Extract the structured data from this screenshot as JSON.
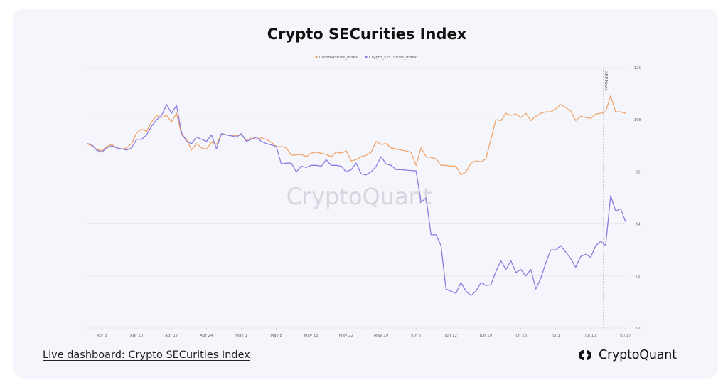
{
  "title": "Crypto SECurities Index",
  "footer": {
    "link_text": "Live dashboard: Crypto SECurities Index"
  },
  "brand": {
    "name": "CryptoQuant",
    "watermark": "CryptoQuant"
  },
  "colors": {
    "commodities": "#f0a56c",
    "crypto": "#8b7ce0",
    "grid": "#e3e4ea"
  },
  "chart_data": {
    "type": "line",
    "title": "Crypto SECurities Index",
    "xlabel": "",
    "ylabel": "",
    "ylim": [
      60,
      120
    ],
    "yticks": [
      60,
      72,
      84,
      96,
      108,
      120
    ],
    "xtick_labels": [
      "Apr 3",
      "Apr 10",
      "Apr 17",
      "Apr 24",
      "May 1",
      "May 8",
      "May 15",
      "May 22",
      "May 29",
      "Jun 5",
      "Jun 12",
      "Jun 19",
      "Jun 26",
      "Jul 3",
      "Jul 10",
      "Jul 17"
    ],
    "x_start": "Mar 31",
    "x_end": "Jul 17",
    "legend_position": "top-center",
    "grid": true,
    "annotation": {
      "label": "XRP News",
      "date": "Jul 13"
    },
    "series": [
      {
        "name": "Commodities_Index",
        "color": "#f0a56c",
        "points": [
          [
            "Mar 31",
            102.5
          ],
          [
            "Apr 1",
            102.0
          ],
          [
            "Apr 2",
            101.2
          ],
          [
            "Apr 3",
            100.8
          ],
          [
            "Apr 4",
            101.8
          ],
          [
            "Apr 5",
            102.3
          ],
          [
            "Apr 6",
            101.5
          ],
          [
            "Apr 7",
            101.2
          ],
          [
            "Apr 8",
            101.5
          ],
          [
            "Apr 9",
            102.5
          ],
          [
            "Apr 10",
            105.0
          ],
          [
            "Apr 11",
            105.8
          ],
          [
            "Apr 12",
            105.3
          ],
          [
            "Apr 13",
            107.5
          ],
          [
            "Apr 14",
            109.0
          ],
          [
            "Apr 15",
            108.5
          ],
          [
            "Apr 16",
            109.0
          ],
          [
            "Apr 17",
            107.5
          ],
          [
            "Apr 18",
            109.5
          ],
          [
            "Apr 19",
            104.5
          ],
          [
            "Apr 20",
            103.5
          ],
          [
            "Apr 21",
            101.0
          ],
          [
            "Apr 22",
            102.5
          ],
          [
            "Apr 23",
            101.5
          ],
          [
            "Apr 24",
            101.2
          ],
          [
            "Apr 25",
            102.8
          ],
          [
            "Apr 26",
            102.3
          ],
          [
            "Apr 27",
            104.8
          ],
          [
            "Apr 28",
            104.5
          ],
          [
            "Apr 29",
            104.5
          ],
          [
            "Apr 30",
            104.3
          ],
          [
            "May 1",
            104.5
          ],
          [
            "May 2",
            103.3
          ],
          [
            "May 3",
            103.8
          ],
          [
            "May 4",
            103.5
          ],
          [
            "May 5",
            103.8
          ],
          [
            "May 6",
            103.5
          ],
          [
            "May 7",
            102.8
          ],
          [
            "May 8",
            101.8
          ],
          [
            "May 9",
            101.8
          ],
          [
            "May 10",
            101.5
          ],
          [
            "May 11",
            99.8
          ],
          [
            "May 12",
            99.9
          ],
          [
            "May 13",
            100.0
          ],
          [
            "May 14",
            99.5
          ],
          [
            "May 15",
            100.3
          ],
          [
            "May 16",
            100.5
          ],
          [
            "May 17",
            100.3
          ],
          [
            "May 18",
            100.0
          ],
          [
            "May 19",
            99.5
          ],
          [
            "May 20",
            100.5
          ],
          [
            "May 21",
            100.3
          ],
          [
            "May 22",
            100.8
          ],
          [
            "May 23",
            98.5
          ],
          [
            "May 24",
            98.8
          ],
          [
            "May 25",
            99.5
          ],
          [
            "May 26",
            99.8
          ],
          [
            "May 27",
            100.5
          ],
          [
            "May 28",
            103.0
          ],
          [
            "May 29",
            102.3
          ],
          [
            "May 30",
            102.5
          ],
          [
            "May 31",
            101.5
          ],
          [
            "Jun 1",
            101.3
          ],
          [
            "Jun 2",
            101.0
          ],
          [
            "Jun 3",
            100.8
          ],
          [
            "Jun 4",
            100.5
          ],
          [
            "Jun 5",
            97.5
          ],
          [
            "Jun 6",
            101.5
          ],
          [
            "Jun 7",
            99.5
          ],
          [
            "Jun 8",
            99.3
          ],
          [
            "Jun 9",
            99.0
          ],
          [
            "Jun 10",
            97.5
          ],
          [
            "Jun 11",
            97.5
          ],
          [
            "Jun 12",
            97.3
          ],
          [
            "Jun 13",
            97.3
          ],
          [
            "Jun 14",
            95.3
          ],
          [
            "Jun 15",
            96.0
          ],
          [
            "Jun 16",
            98.0
          ],
          [
            "Jun 17",
            98.5
          ],
          [
            "Jun 18",
            98.3
          ],
          [
            "Jun 19",
            99.0
          ],
          [
            "Jun 20",
            103.5
          ],
          [
            "Jun 21",
            108.0
          ],
          [
            "Jun 22",
            107.8
          ],
          [
            "Jun 23",
            109.5
          ],
          [
            "Jun 24",
            109.0
          ],
          [
            "Jun 25",
            109.3
          ],
          [
            "Jun 26",
            108.5
          ],
          [
            "Jun 27",
            109.5
          ],
          [
            "Jun 28",
            107.8
          ],
          [
            "Jun 29",
            108.8
          ],
          [
            "Jun 30",
            109.5
          ],
          [
            "Jul 1",
            109.8
          ],
          [
            "Jul 2",
            109.8
          ],
          [
            "Jul 3",
            110.5
          ],
          [
            "Jul 4",
            111.5
          ],
          [
            "Jul 5",
            110.8
          ],
          [
            "Jul 6",
            110.0
          ],
          [
            "Jul 7",
            107.8
          ],
          [
            "Jul 8",
            108.8
          ],
          [
            "Jul 9",
            108.5
          ],
          [
            "Jul 10",
            108.3
          ],
          [
            "Jul 11",
            109.3
          ],
          [
            "Jul 12",
            109.5
          ],
          [
            "Jul 13",
            109.8
          ],
          [
            "Jul 14",
            113.5
          ],
          [
            "Jul 15",
            109.8
          ],
          [
            "Jul 16",
            109.8
          ],
          [
            "Jul 17",
            109.5
          ]
        ]
      },
      {
        "name": "Crypto_SECurities_Index",
        "color": "#8b7ce0",
        "points": [
          [
            "Mar 31",
            102.5
          ],
          [
            "Apr 1",
            102.3
          ],
          [
            "Apr 2",
            101.0
          ],
          [
            "Apr 3",
            100.5
          ],
          [
            "Apr 4",
            101.5
          ],
          [
            "Apr 5",
            102.0
          ],
          [
            "Apr 6",
            101.5
          ],
          [
            "Apr 7",
            101.3
          ],
          [
            "Apr 8",
            101.0
          ],
          [
            "Apr 9",
            101.5
          ],
          [
            "Apr 10",
            103.5
          ],
          [
            "Apr 11",
            103.5
          ],
          [
            "Apr 12",
            104.5
          ],
          [
            "Apr 13",
            106.5
          ],
          [
            "Apr 14",
            108.0
          ],
          [
            "Apr 15",
            109.0
          ],
          [
            "Apr 16",
            111.5
          ],
          [
            "Apr 17",
            109.5
          ],
          [
            "Apr 18",
            111.3
          ],
          [
            "Apr 19",
            105.0
          ],
          [
            "Apr 20",
            103.0
          ],
          [
            "Apr 21",
            102.5
          ],
          [
            "Apr 22",
            104.0
          ],
          [
            "Apr 23",
            103.5
          ],
          [
            "Apr 24",
            103.0
          ],
          [
            "Apr 25",
            104.5
          ],
          [
            "Apr 26",
            101.3
          ],
          [
            "Apr 27",
            104.8
          ],
          [
            "Apr 28",
            104.5
          ],
          [
            "Apr 29",
            104.3
          ],
          [
            "Apr 30",
            104.0
          ],
          [
            "May 1",
            104.8
          ],
          [
            "May 2",
            103.0
          ],
          [
            "May 3",
            103.5
          ],
          [
            "May 4",
            104.0
          ],
          [
            "May 5",
            103.0
          ],
          [
            "May 6",
            102.5
          ],
          [
            "May 7",
            102.2
          ],
          [
            "May 8",
            101.8
          ],
          [
            "May 9",
            97.8
          ],
          [
            "May 10",
            98.0
          ],
          [
            "May 11",
            98.0
          ],
          [
            "May 12",
            96.0
          ],
          [
            "May 13",
            97.3
          ],
          [
            "May 14",
            97.0
          ],
          [
            "May 15",
            97.5
          ],
          [
            "May 16",
            97.5
          ],
          [
            "May 17",
            97.3
          ],
          [
            "May 18",
            98.8
          ],
          [
            "May 19",
            97.5
          ],
          [
            "May 20",
            97.5
          ],
          [
            "May 21",
            97.3
          ],
          [
            "May 22",
            96.0
          ],
          [
            "May 23",
            96.5
          ],
          [
            "May 24",
            98.0
          ],
          [
            "May 25",
            95.5
          ],
          [
            "May 26",
            95.3
          ],
          [
            "May 27",
            96.0
          ],
          [
            "May 28",
            97.3
          ],
          [
            "May 29",
            99.5
          ],
          [
            "May 30",
            97.8
          ],
          [
            "May 31",
            97.5
          ],
          [
            "Jun 1",
            96.5
          ],
          [
            "Jun 2",
            96.5
          ],
          [
            "Jun 3",
            96.4
          ],
          [
            "Jun 4",
            96.3
          ],
          [
            "Jun 5",
            96.2
          ],
          [
            "Jun 6",
            89.0
          ],
          [
            "Jun 7",
            90.0
          ],
          [
            "Jun 8",
            81.5
          ],
          [
            "Jun 9",
            81.5
          ],
          [
            "Jun 10",
            79.0
          ],
          [
            "Jun 11",
            69.0
          ],
          [
            "Jun 12",
            68.5
          ],
          [
            "Jun 13",
            68.0
          ],
          [
            "Jun 14",
            70.5
          ],
          [
            "Jun 15",
            68.5
          ],
          [
            "Jun 16",
            67.5
          ],
          [
            "Jun 17",
            68.5
          ],
          [
            "Jun 18",
            70.5
          ],
          [
            "Jun 19",
            69.8
          ],
          [
            "Jun 20",
            70.0
          ],
          [
            "Jun 21",
            73.0
          ],
          [
            "Jun 22",
            75.5
          ],
          [
            "Jun 23",
            73.5
          ],
          [
            "Jun 24",
            75.5
          ],
          [
            "Jun 25",
            72.8
          ],
          [
            "Jun 26",
            73.5
          ],
          [
            "Jun 27",
            72.0
          ],
          [
            "Jun 28",
            73.5
          ],
          [
            "Jun 29",
            69.0
          ],
          [
            "Jun 30",
            71.5
          ],
          [
            "Jul 1",
            75.0
          ],
          [
            "Jul 2",
            78.0
          ],
          [
            "Jul 3",
            78.0
          ],
          [
            "Jul 4",
            79.0
          ],
          [
            "Jul 5",
            77.5
          ],
          [
            "Jul 6",
            76.0
          ],
          [
            "Jul 7",
            74.0
          ],
          [
            "Jul 8",
            76.5
          ],
          [
            "Jul 9",
            77.0
          ],
          [
            "Jul 10",
            76.3
          ],
          [
            "Jul 11",
            79.0
          ],
          [
            "Jul 12",
            80.0
          ],
          [
            "Jul 13",
            79.0
          ],
          [
            "Jul 14",
            90.5
          ],
          [
            "Jul 15",
            87.0
          ],
          [
            "Jul 16",
            87.5
          ],
          [
            "Jul 17",
            84.5
          ]
        ]
      }
    ]
  }
}
